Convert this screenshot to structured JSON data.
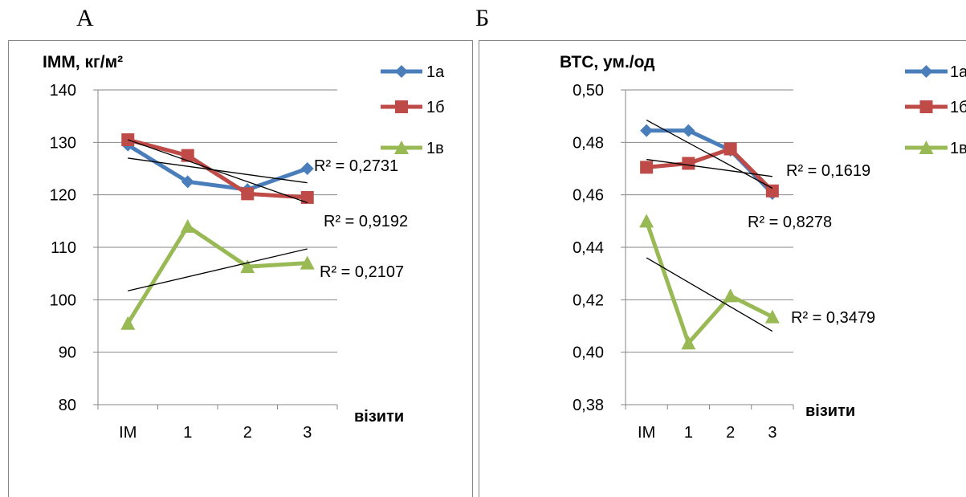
{
  "panels": [
    {
      "letter": "А"
    },
    {
      "letter": "Б"
    }
  ],
  "chart_data": [
    {
      "type": "line",
      "title": "ІММ, кг/м²",
      "xlabel": "візити",
      "ylabel": "",
      "categories": [
        "ІМ",
        "1",
        "2",
        "3"
      ],
      "ylim": [
        80,
        140
      ],
      "yticks": [
        "80",
        "90",
        "100",
        "110",
        "120",
        "130",
        "140"
      ],
      "grid": true,
      "legend": "top-right",
      "series": [
        {
          "name": "1а",
          "color": "#4a7ebb",
          "marker": "diamond",
          "values": [
            129.5,
            122.5,
            121,
            125
          ]
        },
        {
          "name": "1б",
          "color": "#be4b48",
          "marker": "square",
          "values": [
            130.5,
            127.5,
            120.2,
            119.5
          ]
        },
        {
          "name": "1в",
          "color": "#98b954",
          "marker": "triangle",
          "values": [
            95.5,
            114,
            106.3,
            107
          ]
        }
      ],
      "trendlines": [
        {
          "series": "1а",
          "y_start": 127.0,
          "y_end": 122.3,
          "r2_label": "R² = 0,2731"
        },
        {
          "series": "1б",
          "y_start": 130.5,
          "y_end": 118.5,
          "r2_label": "R² = 0,9192"
        },
        {
          "series": "1в",
          "y_start": 101.7,
          "y_end": 109.7,
          "r2_label": "R² = 0,2107"
        }
      ]
    },
    {
      "type": "line",
      "title": "ВТС,  ум./од",
      "xlabel": "візити",
      "ylabel": "",
      "categories": [
        "ІМ",
        "1",
        "2",
        "3"
      ],
      "ylim": [
        0.38,
        0.5
      ],
      "yticks": [
        "0,38",
        "0,40",
        "0,42",
        "0,44",
        "0,46",
        "0,48",
        "0,50"
      ],
      "grid": true,
      "legend": "top-right",
      "series": [
        {
          "name": "1а",
          "color": "#4a7ebb",
          "marker": "diamond",
          "values": [
            0.4845,
            0.4845,
            0.477,
            0.4605
          ]
        },
        {
          "name": "1б",
          "color": "#be4b48",
          "marker": "square",
          "values": [
            0.4705,
            0.472,
            0.4775,
            0.4615
          ]
        },
        {
          "name": "1в",
          "color": "#98b954",
          "marker": "triangle",
          "values": [
            0.45,
            0.4035,
            0.4215,
            0.4135
          ]
        }
      ],
      "trendlines": [
        {
          "series": "1а",
          "y_start": 0.4885,
          "y_end": 0.4625,
          "r2_label": "R² = 0,1619"
        },
        {
          "series": "1б",
          "y_start": 0.4735,
          "y_end": 0.467,
          "r2_label": "R² = 0,8278"
        },
        {
          "series": "1в",
          "y_start": 0.436,
          "y_end": 0.408,
          "r2_label": "R² = 0,3479"
        }
      ]
    }
  ]
}
